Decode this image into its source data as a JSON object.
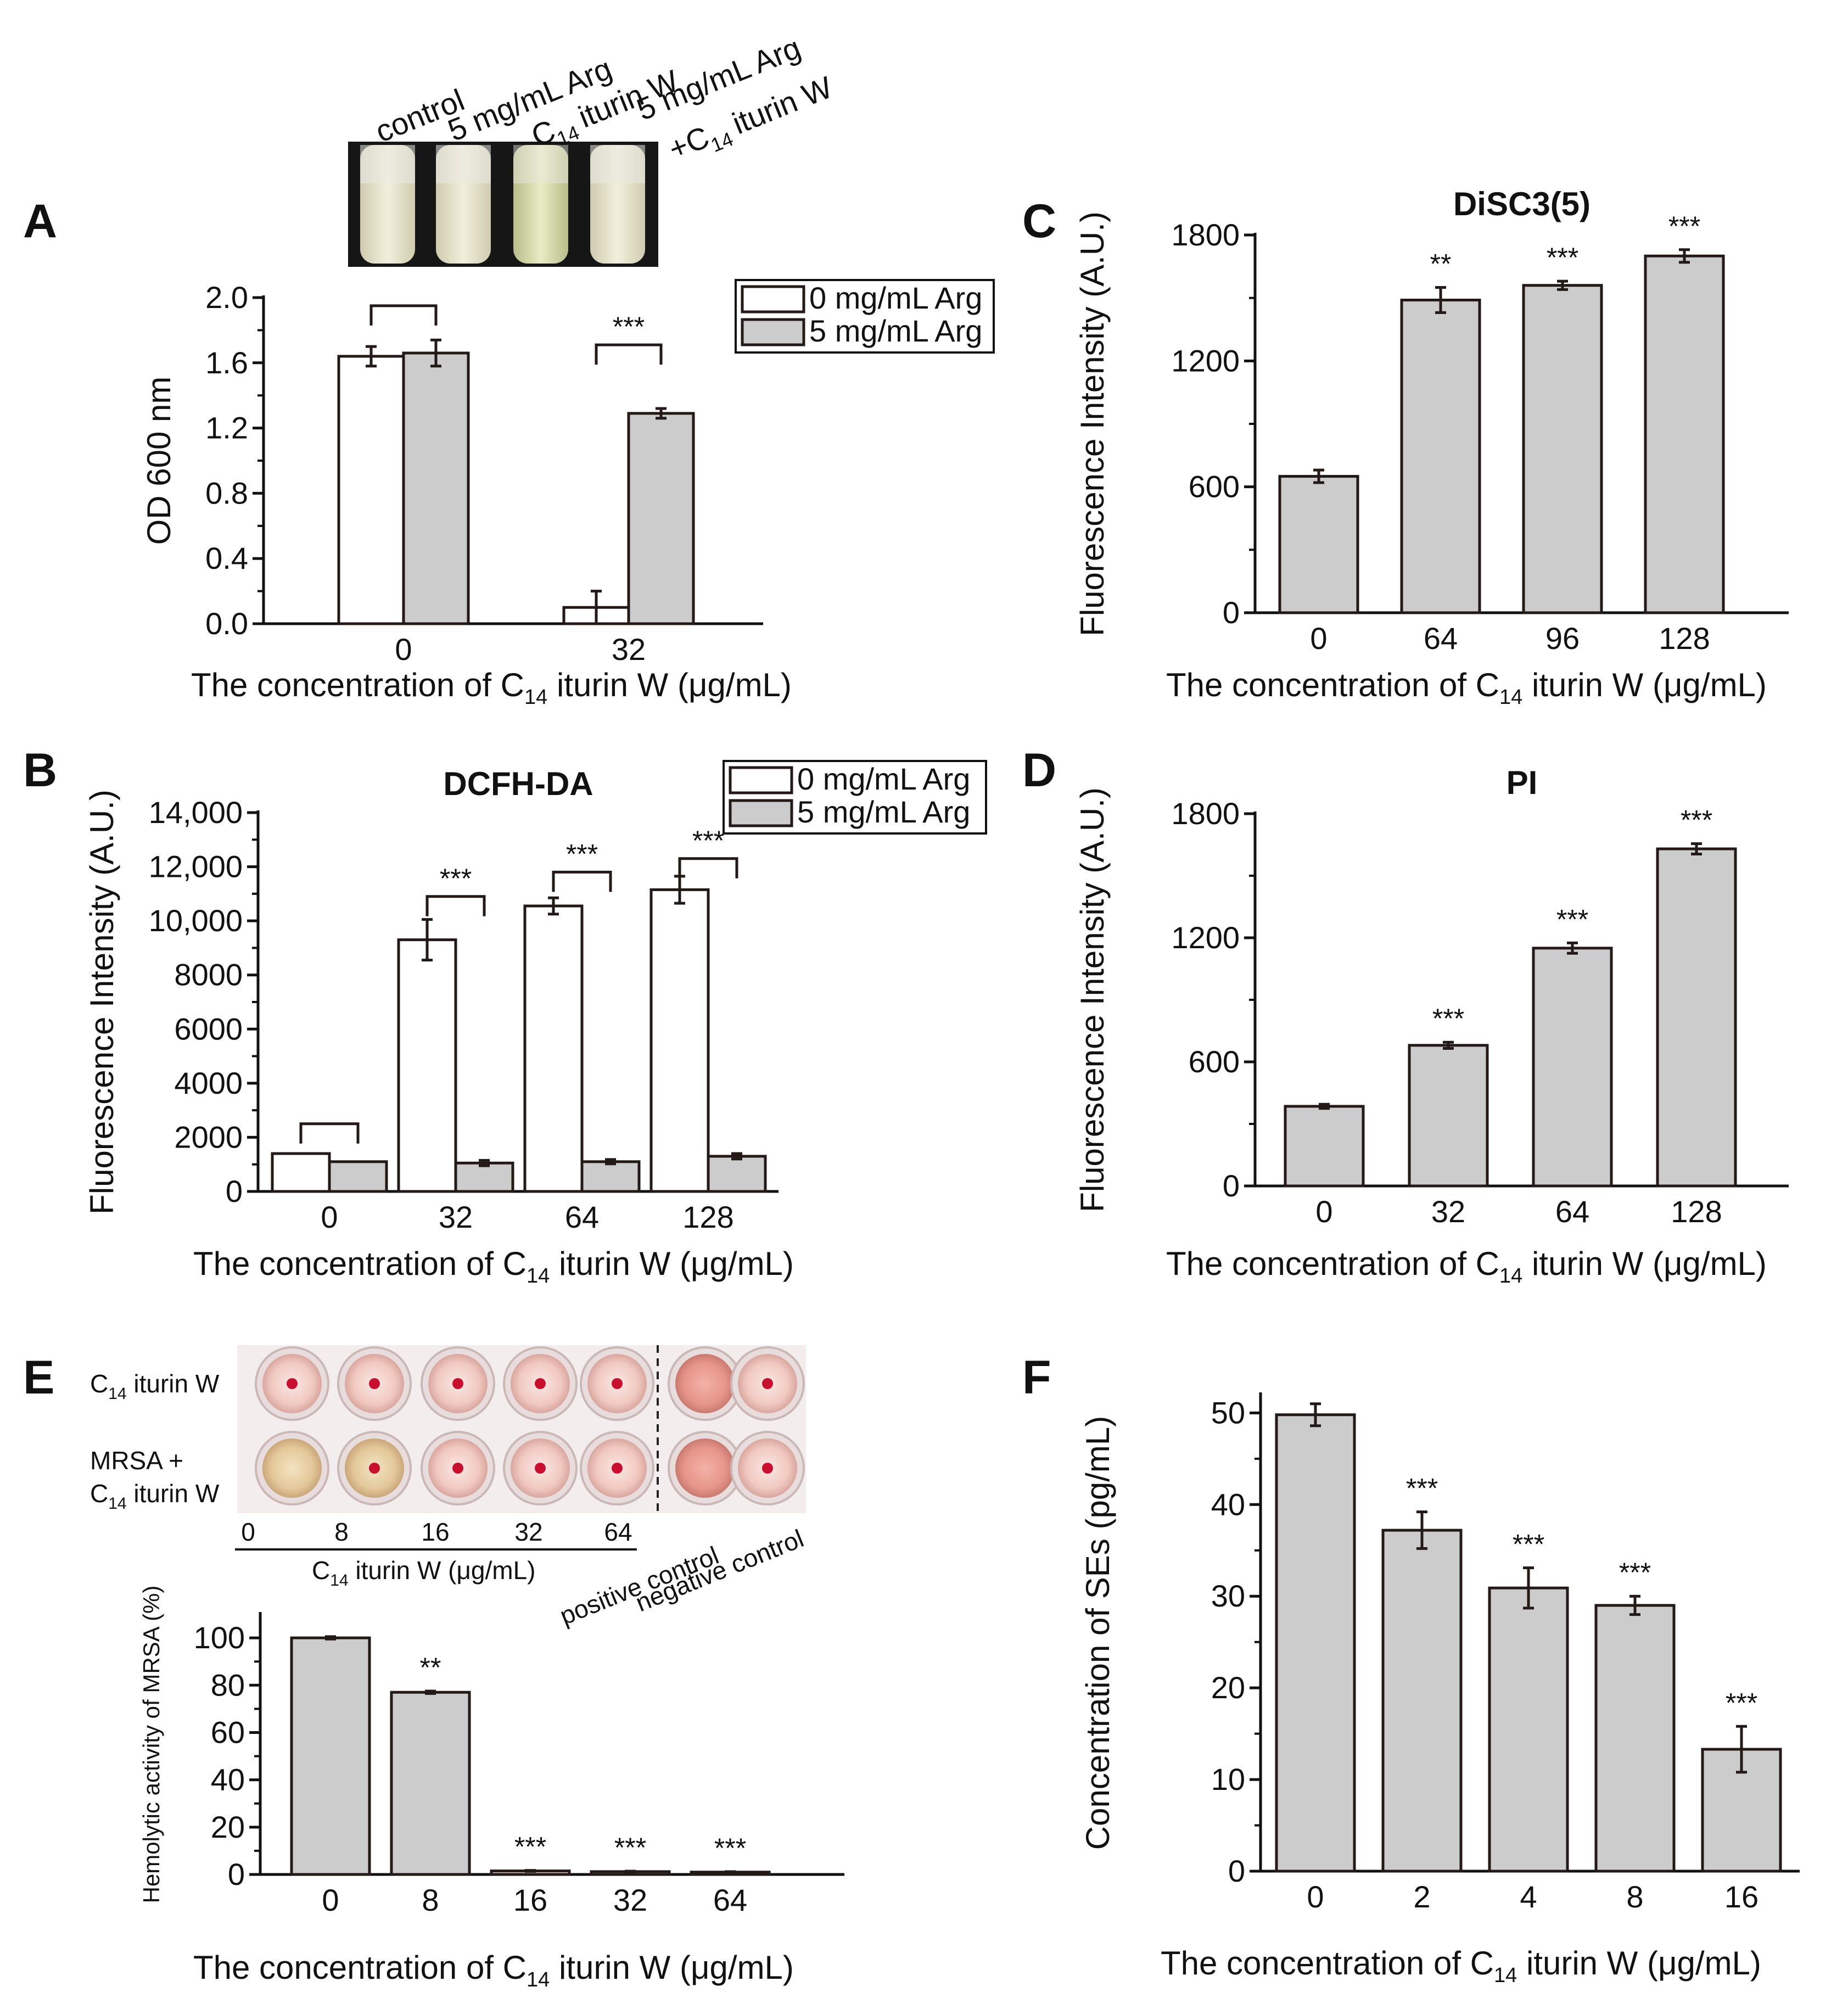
{
  "panels": {
    "A": {
      "letter": "A",
      "photo_labels": [
        "control",
        "5 mg/mL Arg",
        "C",
        "iturin W",
        "5 mg/mL Arg",
        "+C",
        "iturin W"
      ],
      "photo_sub": "14",
      "xlabel_pre": "The concentration of C",
      "xlabel_sub": "14",
      "xlabel_post": " iturin W (μg/mL)"
    },
    "B": {
      "letter": "B",
      "xlabel_pre": "The concentration of C",
      "xlabel_sub": "14",
      "xlabel_post": " iturin W (μg/mL)"
    },
    "C": {
      "letter": "C",
      "xlabel_pre": "The concentration of C",
      "xlabel_sub": "14",
      "xlabel_post": " iturin W (μg/mL)"
    },
    "D": {
      "letter": "D",
      "xlabel_pre": "The concentration of C",
      "xlabel_sub": "14",
      "xlabel_post": " iturin W (μg/mL)"
    },
    "E": {
      "letter": "E",
      "row1": "C",
      "row1_sub": "14",
      "row1_post": " iturin W",
      "row2a": "MRSA +",
      "row2b": "C",
      "row2b_sub": "14",
      "row2b_post": " iturin W",
      "plate_ticks": [
        "0",
        "8",
        "16",
        "32",
        "64"
      ],
      "plate_axis": "C",
      "plate_axis_sub": "14",
      "plate_axis_post": " iturin W (μg/mL)",
      "positive": "positive control",
      "negative": "negative control",
      "xlabel_pre": "The concentration of C",
      "xlabel_sub": "14",
      "xlabel_post": " iturin W (μg/mL)"
    },
    "F": {
      "letter": "F",
      "xlabel_pre": "The concentration of C",
      "xlabel_sub": "14",
      "xlabel_post": " iturin W (μg/mL)"
    }
  },
  "colors": {
    "bar_fill": "#cccccc",
    "bar_open": "#ffffff",
    "bar_stroke": "#231a17",
    "axis": "#111111"
  },
  "chart_data": [
    {
      "id": "A",
      "type": "bar",
      "title": "",
      "xlabel": "The concentration of C14 iturin W (μg/mL)",
      "ylabel": "OD 600 nm",
      "categories": [
        "0",
        "32"
      ],
      "ylim": [
        0,
        2.0
      ],
      "yticks": [
        0,
        0.4,
        0.8,
        1.2,
        1.6,
        2.0
      ],
      "ytick_labels": [
        "0.0",
        "0.4",
        "0.8",
        "1.2",
        "1.6",
        "2.0"
      ],
      "series": [
        {
          "name": "0 mg/mL Arg",
          "fill": "open",
          "values": [
            1.64,
            0.1
          ],
          "errors": [
            0.06,
            0.1
          ]
        },
        {
          "name": "5 mg/mL Arg",
          "fill": "gray",
          "values": [
            1.66,
            1.29
          ],
          "errors": [
            0.08,
            0.03
          ]
        }
      ],
      "brackets": [
        {
          "category": 0,
          "y": 1.95,
          "stars": ""
        },
        {
          "category": 1,
          "y": 1.71,
          "stars": "***"
        }
      ],
      "legend": [
        "0 mg/mL Arg",
        "5 mg/mL Arg"
      ]
    },
    {
      "id": "B",
      "type": "bar",
      "title": "DCFH-DA",
      "xlabel": "The concentration of C14 iturin W (μg/mL)",
      "ylabel": "Fluorescence Intensity (A.U.)",
      "categories": [
        "0",
        "32",
        "64",
        "128"
      ],
      "ylim": [
        0,
        14000
      ],
      "yticks": [
        0,
        2000,
        4000,
        6000,
        8000,
        10000,
        12000,
        14000
      ],
      "ytick_labels": [
        "0",
        "2000",
        "4000",
        "6000",
        "8000",
        "10,000",
        "12,000",
        "14,000"
      ],
      "series": [
        {
          "name": "0 mg/mL Arg",
          "fill": "open",
          "values": [
            1400,
            9300,
            10550,
            11150
          ],
          "errors": [
            0,
            750,
            300,
            500
          ]
        },
        {
          "name": "5 mg/mL Arg",
          "fill": "gray",
          "values": [
            1100,
            1050,
            1100,
            1300
          ],
          "errors": [
            0,
            100,
            80,
            100
          ]
        }
      ],
      "brackets": [
        {
          "category": 0,
          "y": 2500,
          "stars": ""
        },
        {
          "category": 1,
          "y": 10900,
          "stars": "***"
        },
        {
          "category": 2,
          "y": 11800,
          "stars": "***"
        },
        {
          "category": 3,
          "y": 12300,
          "stars": "***"
        }
      ],
      "legend": [
        "0 mg/mL Arg",
        "5 mg/mL Arg"
      ]
    },
    {
      "id": "C",
      "type": "bar",
      "title": "DiSC3(5)",
      "xlabel": "The concentration of C14 iturin W (μg/mL)",
      "ylabel": "Fluorescence Intensity (A.U.)",
      "categories": [
        "0",
        "64",
        "96",
        "128"
      ],
      "ylim": [
        0,
        1800
      ],
      "yticks": [
        0,
        600,
        1200,
        1800
      ],
      "ytick_labels": [
        "0",
        "600",
        "1200",
        "1800"
      ],
      "series": [
        {
          "name": "",
          "fill": "gray",
          "values": [
            650,
            1490,
            1560,
            1700
          ],
          "errors": [
            30,
            60,
            20,
            30
          ]
        }
      ],
      "stars": [
        "",
        "**",
        "***",
        "***"
      ]
    },
    {
      "id": "D",
      "type": "bar",
      "title": "PI",
      "xlabel": "The concentration of C14 iturin W (μg/mL)",
      "ylabel": "Fluorescence Intensity (A.U.)",
      "categories": [
        "0",
        "32",
        "64",
        "128"
      ],
      "ylim": [
        0,
        1800
      ],
      "yticks": [
        0,
        600,
        1200,
        1800
      ],
      "ytick_labels": [
        "0",
        "600",
        "1200",
        "1800"
      ],
      "series": [
        {
          "name": "",
          "fill": "gray",
          "values": [
            385,
            680,
            1150,
            1630
          ],
          "errors": [
            10,
            15,
            25,
            25
          ]
        }
      ],
      "stars": [
        "",
        "***",
        "***",
        "***"
      ]
    },
    {
      "id": "E",
      "type": "bar",
      "title": "",
      "xlabel": "The concentration of C14 iturin W (μg/mL)",
      "ylabel": "Hemolytic activity of MRSA (%)",
      "categories": [
        "0",
        "8",
        "16",
        "32",
        "64"
      ],
      "ylim": [
        0,
        110
      ],
      "yticks": [
        0,
        20,
        40,
        60,
        80,
        100
      ],
      "ytick_labels": [
        "0",
        "20",
        "40",
        "60",
        "80",
        "100"
      ],
      "series": [
        {
          "name": "",
          "fill": "gray",
          "values": [
            100,
            77,
            1.5,
            1.2,
            1.0
          ],
          "errors": [
            0.5,
            0.5,
            0.2,
            0.2,
            0.2
          ]
        }
      ],
      "stars": [
        "",
        "**",
        "***",
        "***",
        "***"
      ]
    },
    {
      "id": "F",
      "type": "bar",
      "title": "",
      "xlabel": "The concentration of C14 iturin W (μg/mL)",
      "ylabel": "Concentration of SEs (pg/mL)",
      "categories": [
        "0",
        "2",
        "4",
        "8",
        "16"
      ],
      "ylim": [
        0,
        52
      ],
      "yticks": [
        0,
        10,
        20,
        30,
        40,
        50
      ],
      "ytick_labels": [
        "0",
        "10",
        "20",
        "30",
        "40",
        "50"
      ],
      "series": [
        {
          "name": "",
          "fill": "gray",
          "values": [
            49.8,
            37.2,
            30.9,
            29.0,
            13.3
          ],
          "errors": [
            1.2,
            2.0,
            2.2,
            1.0,
            2.5
          ]
        }
      ],
      "stars": [
        "",
        "***",
        "***",
        "***",
        "***"
      ]
    }
  ]
}
